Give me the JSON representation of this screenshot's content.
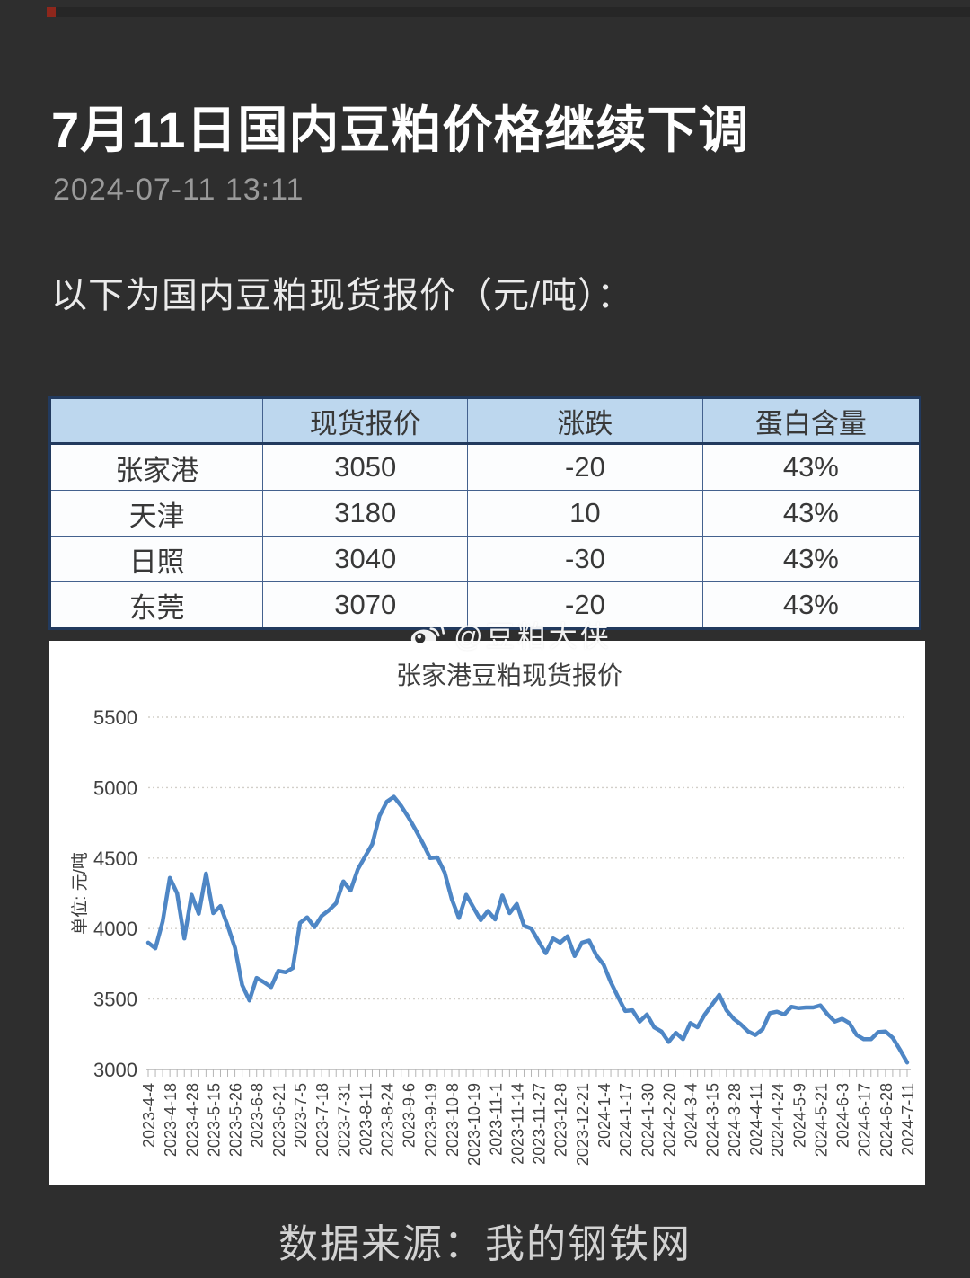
{
  "page": {
    "title": "7月11日国内豆粕价格继续下调",
    "date": "2024-07-11 13:11",
    "intro": "以下为国内豆粕现货报价（元/吨）：",
    "watermark": "@豆粕大侠",
    "watermark_icon": "weibo-icon",
    "footer": "数据来源：我的钢铁网"
  },
  "table": {
    "headers": [
      "",
      "现货报价",
      "涨跌",
      "蛋白含量"
    ],
    "rows": [
      {
        "city": "张家港",
        "price": "3050",
        "change": "-20",
        "protein": "43%"
      },
      {
        "city": "天津",
        "price": "3180",
        "change": "10",
        "protein": "43%"
      },
      {
        "city": "日照",
        "price": "3040",
        "change": "-30",
        "protein": "43%"
      },
      {
        "city": "东莞",
        "price": "3070",
        "change": "-20",
        "protein": "43%"
      }
    ]
  },
  "chart_data": {
    "type": "line",
    "title": "张家港豆粕现货报价",
    "xlabel": "",
    "ylabel": "单位: 元/吨",
    "ylim": [
      3000,
      5500
    ],
    "yticks": [
      3000,
      3500,
      4000,
      4500,
      5000,
      5500
    ],
    "grid": "horizontal-dotted",
    "legend_position": "none",
    "line_color": "#4e86c5",
    "points_per_label_interval": 3,
    "x_labels": [
      "2023-4-4",
      "2023-4-18",
      "2023-4-28",
      "2023-5-15",
      "2023-5-26",
      "2023-6-8",
      "2023-6-21",
      "2023-7-5",
      "2023-7-18",
      "2023-7-31",
      "2023-8-11",
      "2023-8-24",
      "2023-9-6",
      "2023-9-19",
      "2023-10-8",
      "2023-10-19",
      "2023-11-1",
      "2023-11-14",
      "2023-11-27",
      "2023-12-8",
      "2023-12-21",
      "2024-1-4",
      "2024-1-17",
      "2024-1-30",
      "2024-2-20",
      "2024-3-4",
      "2024-3-15",
      "2024-3-28",
      "2024-4-11",
      "2024-4-24",
      "2024-5-9",
      "2024-5-21",
      "2024-6-3",
      "2024-6-17",
      "2024-6-28",
      "2024-7-11"
    ],
    "values": [
      3900,
      3860,
      4050,
      4360,
      4250,
      3930,
      4240,
      4105,
      4390,
      4110,
      4160,
      4020,
      3865,
      3600,
      3490,
      3650,
      3620,
      3585,
      3700,
      3690,
      3720,
      4040,
      4080,
      4010,
      4090,
      4130,
      4180,
      4335,
      4270,
      4420,
      4510,
      4600,
      4800,
      4900,
      4935,
      4870,
      4790,
      4700,
      4605,
      4500,
      4505,
      4400,
      4210,
      4075,
      4240,
      4150,
      4060,
      4125,
      4065,
      4235,
      4110,
      4175,
      4020,
      4000,
      3910,
      3825,
      3930,
      3900,
      3945,
      3805,
      3900,
      3915,
      3810,
      3745,
      3620,
      3515,
      3415,
      3420,
      3340,
      3390,
      3300,
      3270,
      3195,
      3260,
      3215,
      3330,
      3300,
      3390,
      3460,
      3530,
      3420,
      3360,
      3320,
      3270,
      3245,
      3285,
      3400,
      3410,
      3390,
      3445,
      3435,
      3440,
      3440,
      3455,
      3390,
      3340,
      3360,
      3330,
      3245,
      3215,
      3215,
      3265,
      3270,
      3225,
      3140,
      3050
    ]
  },
  "colors": {
    "background": "#2e2e2e",
    "card": "#ffffff",
    "table_header_bg": "#bdd7ee",
    "table_border": "#223a5e",
    "line": "#4e86c5",
    "muted_text": "#9a9a9a",
    "footer_text": "#d2d2d2"
  }
}
